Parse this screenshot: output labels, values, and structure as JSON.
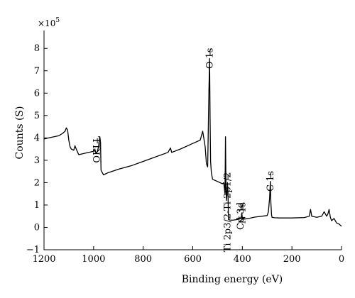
{
  "chart_data": {
    "type": "line",
    "xlabel": "Binding energy (eV)",
    "ylabel": "Counts (S)",
    "multiplier_base": "×10",
    "multiplier_exp": "5",
    "xlim": [
      1200,
      0
    ],
    "ylim": [
      -1,
      8.8
    ],
    "x_reversed": true,
    "grid": false,
    "xticks": [
      1200,
      1000,
      800,
      600,
      400,
      200,
      0
    ],
    "yticks": [
      -1,
      0,
      1,
      2,
      3,
      4,
      5,
      6,
      7,
      8
    ],
    "series": [
      {
        "x": [
          1200,
          1180,
          1160,
          1140,
          1125,
          1115,
          1110,
          1105,
          1100,
          1095,
          1090,
          1080,
          1075,
          1070,
          1060,
          1040,
          1020,
          1000,
          995,
          990,
          985,
          980,
          975,
          972,
          970,
          960,
          940,
          900,
          850,
          800,
          750,
          700,
          690,
          685,
          650,
          600,
          570,
          560,
          550,
          545,
          540,
          535,
          532,
          530,
          528,
          525,
          520,
          500,
          480,
          475,
          470,
          468,
          466,
          464,
          462,
          460,
          458,
          456,
          455,
          450,
          440,
          420,
          405,
          402,
          400,
          398,
          395,
          380,
          350,
          300,
          295,
          290,
          287,
          285,
          282,
          280,
          270,
          250,
          200,
          150,
          130,
          125,
          120,
          100,
          80,
          70,
          60,
          55,
          50,
          45,
          40,
          30,
          20,
          10,
          0
        ],
        "y": [
          3.95,
          4.0,
          4.05,
          4.1,
          4.2,
          4.3,
          4.45,
          4.35,
          3.9,
          3.6,
          3.5,
          3.45,
          3.65,
          3.5,
          3.25,
          3.3,
          3.35,
          3.4,
          3.5,
          3.3,
          3.4,
          3.6,
          4.05,
          3.8,
          2.55,
          2.35,
          2.45,
          2.6,
          2.75,
          2.95,
          3.15,
          3.35,
          3.55,
          3.35,
          3.5,
          3.75,
          3.9,
          4.3,
          3.6,
          2.85,
          2.7,
          6.0,
          7.55,
          4.9,
          2.95,
          2.45,
          2.15,
          2.05,
          1.95,
          2.0,
          1.5,
          4.05,
          1.75,
          1.2,
          1.5,
          2.0,
          1.6,
          0.35,
          0.35,
          0.33,
          0.32,
          0.35,
          0.4,
          0.65,
          0.42,
          0.38,
          0.37,
          0.39,
          0.46,
          0.53,
          0.7,
          1.3,
          2.05,
          1.1,
          0.55,
          0.45,
          0.43,
          0.42,
          0.42,
          0.44,
          0.5,
          0.8,
          0.5,
          0.45,
          0.5,
          0.7,
          0.5,
          0.6,
          0.8,
          0.45,
          0.3,
          0.4,
          0.2,
          0.15,
          0.05
        ]
      }
    ],
    "annotations": [
      {
        "text": "O 1s",
        "x": 530
      },
      {
        "text": "OKLL",
        "x": 985
      },
      {
        "text": "Ti 2p3/2-Ti 2p1/2",
        "x": 458
      },
      {
        "text": "Cd 3d",
        "x": 405
      },
      {
        "text": "N 1s",
        "x": 398
      },
      {
        "text": "C 1s",
        "x": 285
      }
    ]
  }
}
